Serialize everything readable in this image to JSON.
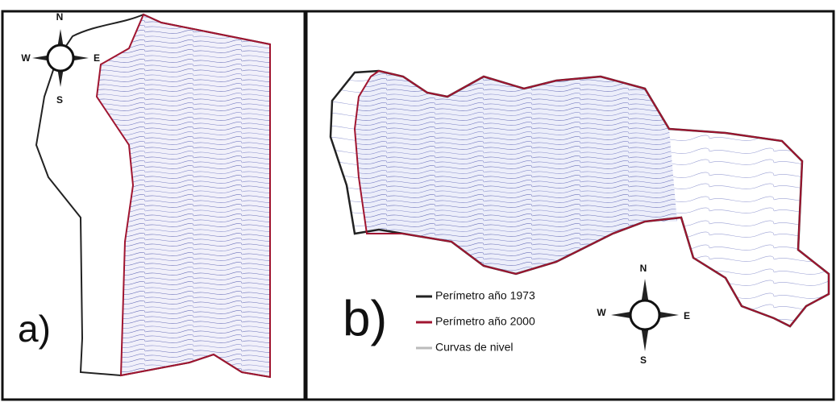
{
  "panels": [
    {
      "label": "a)",
      "compass": {
        "north": "N",
        "west": "W",
        "east": "E",
        "south": "S"
      }
    },
    {
      "label": "b)",
      "compass": {
        "north": "N",
        "west": "W",
        "east": "E",
        "south": "S"
      },
      "legend": [
        "Perímetro año 1973",
        "Perímetro año 2000",
        "Curvas de nivel"
      ]
    }
  ]
}
